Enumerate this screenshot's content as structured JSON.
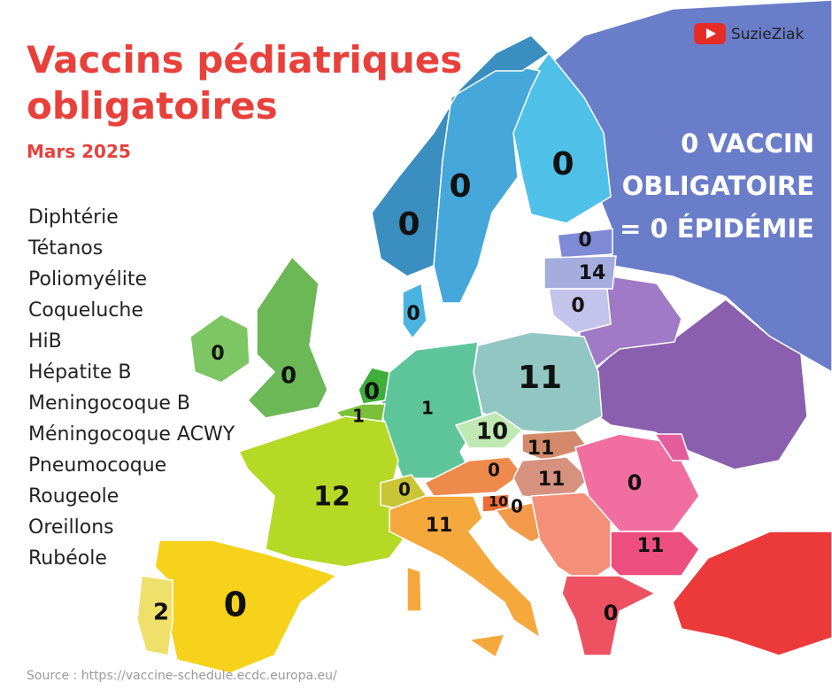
{
  "header": {
    "title": [
      "Vaccins pédiatriques",
      "obligatoires"
    ],
    "date": "Mars 2025",
    "brand": "SuzieZiak"
  },
  "vaccines": [
    "Diphtérie",
    "Tétanos",
    "Poliomyélite",
    "Coqueluche",
    "HiB",
    "Hépatite B",
    "Meningocoque B",
    "Méningocoque ACWY",
    "Pneumocoque",
    "Rougeole",
    "Oreillons",
    "Rubéole"
  ],
  "slogan": [
    "0 VACCIN",
    "OBLIGATOIRE",
    "= 0 ÉPIDÉMIE"
  ],
  "map_labels": [
    0,
    0,
    0,
    0,
    14,
    0,
    0,
    0,
    0,
    0,
    1,
    1,
    11,
    10,
    11,
    11,
    0,
    0,
    0,
    12,
    10,
    0,
    11,
    11,
    2,
    0,
    0
  ],
  "source": "Source : https://vaccine-schedule.ecdc.europa.eu/"
}
